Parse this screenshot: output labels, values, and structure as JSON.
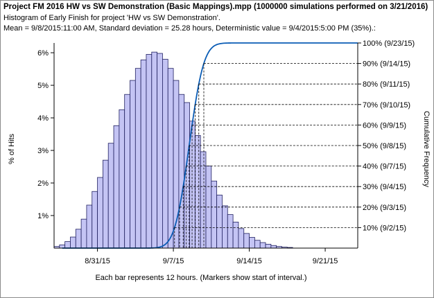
{
  "header": {
    "title": "Project FM 2016 HW vs SW Demonstration (Basic Mappings).mpp (1000000 simulations performed on 3/21/2016)",
    "subtitle": "Histogram of Early Finish for project 'HW vs SW Demonstration'.",
    "stats": "Mean = 9/8/2015:11:00 AM, Standard deviation = 25.28 hours, Deterministic value = 9/4/2015:5:00 PM (35%).:"
  },
  "colors": {
    "bar_fill": "#c4c4f4",
    "bar_stroke": "#202060",
    "curve": "#0a5cb5",
    "axis": "#000000"
  },
  "chart_data": {
    "type": "bar",
    "title": "Histogram of Early Finish for project 'HW vs SW Demonstration'.",
    "xlabel": "Each bar represents 12 hours.  (Markers show start of interval.)",
    "ylabel": "% of Hits",
    "y2label": "Cumulative Frequency",
    "bin_hours": 12,
    "x_start": "8/27/15",
    "x_end": "9/24/15",
    "x_ticks": [
      {
        "label": "8/31/15",
        "date": "8/31/15"
      },
      {
        "label": "9/7/15",
        "date": "9/7/15"
      },
      {
        "label": "9/14/15",
        "date": "9/14/15"
      },
      {
        "label": "9/21/15",
        "date": "9/21/15"
      }
    ],
    "ylim": [
      0,
      6.3
    ],
    "y_ticks": [
      {
        "label": "1%",
        "value": 1
      },
      {
        "label": "2%",
        "value": 2
      },
      {
        "label": "3%",
        "value": 3
      },
      {
        "label": "4%",
        "value": 4
      },
      {
        "label": "5%",
        "value": 5
      },
      {
        "label": "6%",
        "value": 6
      }
    ],
    "y2lim": [
      0,
      100
    ],
    "values": [
      0.05,
      0.1,
      0.2,
      0.34,
      0.58,
      0.89,
      1.32,
      1.74,
      2.17,
      2.7,
      3.22,
      3.76,
      4.25,
      4.72,
      5.15,
      5.52,
      5.78,
      5.95,
      6.02,
      5.98,
      5.8,
      5.52,
      5.15,
      4.72,
      4.47,
      3.9,
      3.46,
      2.96,
      2.52,
      2.06,
      1.63,
      1.3,
      1.03,
      0.8,
      0.6,
      0.45,
      0.33,
      0.24,
      0.17,
      0.12,
      0.08,
      0.05,
      0.03,
      0.02
    ],
    "cumulative_markers": [
      {
        "label": "10% (9/2/15)",
        "percent": 10,
        "date": "9/2/15"
      },
      {
        "label": "20% (9/3/15)",
        "percent": 20,
        "date": "9/3/15"
      },
      {
        "label": "30% (9/4/15)",
        "percent": 30,
        "date": "9/4/15"
      },
      {
        "label": "40% (9/7/15)",
        "percent": 40,
        "date": "9/7/15"
      },
      {
        "label": "50% (9/8/15)",
        "percent": 50,
        "date": "9/8/15"
      },
      {
        "label": "60% (9/9/15)",
        "percent": 60,
        "date": "9/9/15"
      },
      {
        "label": "70% (9/10/15)",
        "percent": 70,
        "date": "9/10/15"
      },
      {
        "label": "80% (9/11/15)",
        "percent": 80,
        "date": "9/11/15"
      },
      {
        "label": "90% (9/14/15)",
        "percent": 90,
        "date": "9/14/15"
      },
      {
        "label": "100% (9/23/15)",
        "percent": 100,
        "date": "9/23/15"
      }
    ],
    "grid": false,
    "legend": "none"
  }
}
